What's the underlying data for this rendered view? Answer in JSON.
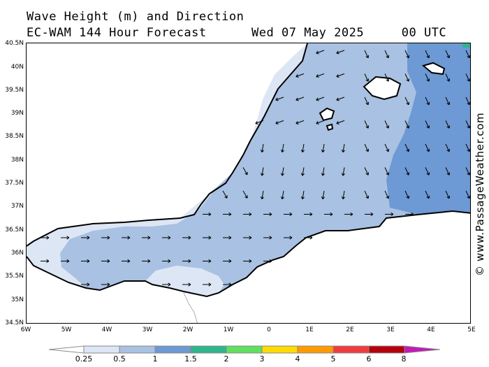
{
  "title_line1": "Wave Height (m) and Direction",
  "title_line2": "EC-WAM 144 Hour Forecast      Wed 07 May 2025     00 UTC",
  "watermark": "© www.PassageWeather.com",
  "lat_labels": [
    "40.5N",
    "40N",
    "39.5N",
    "39N",
    "38.5N",
    "38N",
    "37.5N",
    "37N",
    "36.5N",
    "36N",
    "35.5N",
    "35N",
    "34.5N"
  ],
  "lon_labels": [
    "6W",
    "5W",
    "4W",
    "3W",
    "2W",
    "1W",
    "0",
    "1E",
    "2E",
    "3E",
    "4E",
    "5E"
  ],
  "legend": {
    "labels": [
      "0.25",
      "0.5",
      "1",
      "1.5",
      "2",
      "3",
      "4",
      "5",
      "6",
      "8"
    ],
    "colors": [
      "#ffffff",
      "#dde6f4",
      "#a9c1e2",
      "#6d99d4",
      "#2fb58d",
      "#5fe05f",
      "#ffdb00",
      "#ff9a00",
      "#f03c3c",
      "#b3000a",
      "#c21ab8"
    ]
  },
  "map_colors": {
    "land": "#ffffff",
    "sea_0_5": "#dde6f4",
    "sea_1": "#a9c1e2",
    "sea_1_5": "#6d99d4",
    "coast": "#000000",
    "border": "#888888"
  }
}
